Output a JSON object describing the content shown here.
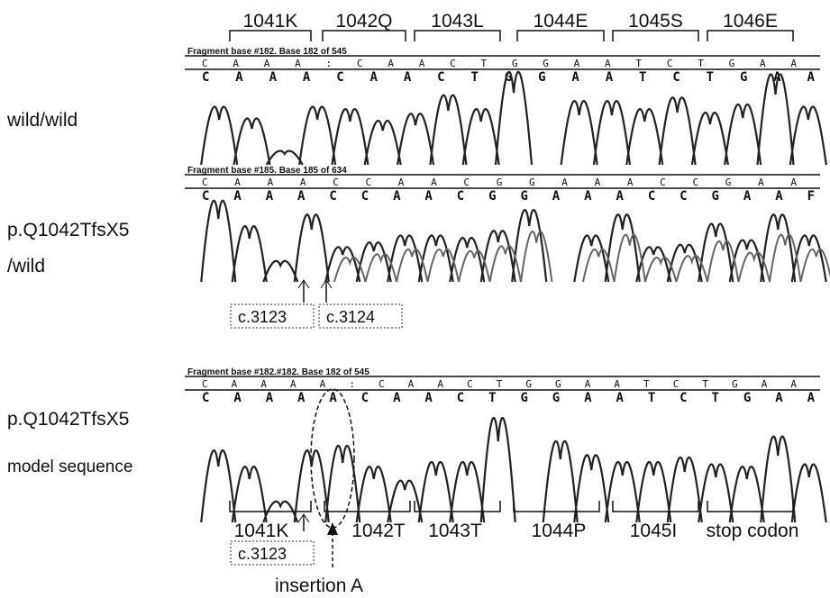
{
  "top_codons": [
    "1041K",
    "1042Q",
    "1043L",
    "1044E",
    "1045S",
    "1046E"
  ],
  "panels": [
    {
      "label": [
        "wild/wild"
      ],
      "header": "Fragment base #182. Base 182 of 545",
      "bases_top": "CAAA:CAACTGGAATCTGAA",
      "bases_bottom": "CAAACAACTGGAATCTGAA"
    },
    {
      "label": [
        "p.Q1042TfsX5",
        "/wild"
      ],
      "header": "Fragment base #185. Base 185 of 634",
      "bases_top": "CAAACCAACGGAAACCGAA",
      "bases_bottom": "CAAACCAACGGAAACCGAAF",
      "boxes": [
        "c.3123",
        "c.3124"
      ]
    },
    {
      "label": [
        "p.Q1042TfsX5",
        "model sequence"
      ],
      "header": "Fragment base #182.#182. Base 182 of 545",
      "bases_top": "CAAAA:CAACTGGAATCTGAA",
      "bases_bottom": "CAAAACAACTGGAATCTGAA",
      "bottom_codons": [
        "1041K",
        "1042T",
        "1043T",
        "1044P",
        "1045I",
        "stop codon"
      ],
      "box": "c.3123",
      "insertion": "insertion A"
    }
  ]
}
